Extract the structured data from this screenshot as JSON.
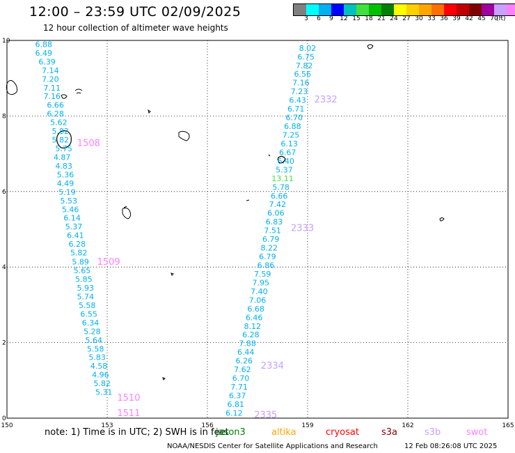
{
  "title": "12:00 – 23:59 UTC 02/09/2025",
  "subtitle": "12 hour collection of altimeter wave heights",
  "colorbar": {
    "colors": [
      "#808080",
      "#00ffff",
      "#00b0f0",
      "#0000ff",
      "#00c0c0",
      "#40e040",
      "#00c000",
      "#008000",
      "#ffff00",
      "#ffd000",
      "#ffa500",
      "#ff7000",
      "#ff0000",
      "#c00000",
      "#800000",
      "#a000a0",
      "#c8a0ff",
      "#ff80ff",
      "#000000"
    ],
    "labels": [
      "3",
      "6",
      "9",
      "12",
      "15",
      "18",
      "21",
      "24",
      "27",
      "30",
      "33",
      "36",
      "39",
      "42",
      "45",
      "70"
    ],
    "unit": "(ft)"
  },
  "axes": {
    "x_ticks": [
      "150",
      "153",
      "156",
      "159",
      "162",
      "165"
    ],
    "y_ticks": [
      "0",
      "2",
      "4",
      "6",
      "8",
      "10"
    ],
    "xlim": [
      150,
      165
    ],
    "ylim": [
      0,
      10
    ]
  },
  "note": "note:  1) Time is in UTC;  2) SWH is in feet",
  "missions": [
    {
      "name": "jason3",
      "color": "#008000"
    },
    {
      "name": "altika",
      "color": "#ffa500"
    },
    {
      "name": "cryosat",
      "color": "#ff0000"
    },
    {
      "name": "s3a",
      "color": "#800000"
    },
    {
      "name": "s3b",
      "color": "#c8a0ff"
    },
    {
      "name": "swot",
      "color": "#ff80ff"
    }
  ],
  "footer": {
    "center": "NOAA/NESDIS Center for Satellite Applications and Research",
    "date": "12 Feb 08:26:08 UTC 2025"
  },
  "colors": {
    "wave_label": "#00b0f0",
    "high_label": "#40e040"
  },
  "tracks": [
    {
      "labels": [
        {
          "text": "1508",
          "lon": 152.1,
          "lat": 7.3,
          "color": "#ff80ff"
        },
        {
          "text": "1509",
          "lon": 152.7,
          "lat": 4.15,
          "color": "#ff80ff"
        },
        {
          "text": "1510",
          "lon": 153.3,
          "lat": 0.55,
          "color": "#ff80ff"
        },
        {
          "text": "1511",
          "lon": 153.3,
          "lat": 0.15,
          "color": "#ff80ff"
        }
      ],
      "points": [
        {
          "lon": 151.1,
          "lat": 9.9,
          "v": "6.88"
        },
        {
          "lon": 151.1,
          "lat": 9.67,
          "v": "6.49"
        },
        {
          "lon": 151.2,
          "lat": 9.44,
          "v": "6.39"
        },
        {
          "lon": 151.3,
          "lat": 9.21,
          "v": "7.14"
        },
        {
          "lon": 151.3,
          "lat": 8.98,
          "v": "7.20"
        },
        {
          "lon": 151.35,
          "lat": 8.75,
          "v": "7.11"
        },
        {
          "lon": 151.35,
          "lat": 8.52,
          "v": "7.16"
        },
        {
          "lon": 151.45,
          "lat": 8.29,
          "v": "6.66"
        },
        {
          "lon": 151.45,
          "lat": 8.06,
          "v": "6.28"
        },
        {
          "lon": 151.55,
          "lat": 7.83,
          "v": "5.62"
        },
        {
          "lon": 151.6,
          "lat": 7.6,
          "v": "5.82"
        },
        {
          "lon": 151.6,
          "lat": 7.37,
          "v": "5.82"
        },
        {
          "lon": 151.7,
          "lat": 7.14,
          "v": "5.75"
        },
        {
          "lon": 151.65,
          "lat": 6.91,
          "v": "4.87"
        },
        {
          "lon": 151.7,
          "lat": 6.68,
          "v": "4.83"
        },
        {
          "lon": 151.75,
          "lat": 6.45,
          "v": "5.36"
        },
        {
          "lon": 151.75,
          "lat": 6.22,
          "v": "4.49"
        },
        {
          "lon": 151.8,
          "lat": 5.99,
          "v": "5.19"
        },
        {
          "lon": 151.85,
          "lat": 5.76,
          "v": "5.53"
        },
        {
          "lon": 151.9,
          "lat": 5.53,
          "v": "5.46"
        },
        {
          "lon": 151.95,
          "lat": 5.3,
          "v": "6.14"
        },
        {
          "lon": 152.0,
          "lat": 5.07,
          "v": "5.37"
        },
        {
          "lon": 152.05,
          "lat": 4.84,
          "v": "6.41"
        },
        {
          "lon": 152.1,
          "lat": 4.61,
          "v": "6.28"
        },
        {
          "lon": 152.15,
          "lat": 4.38,
          "v": "5.82"
        },
        {
          "lon": 152.2,
          "lat": 4.14,
          "v": "5.89"
        },
        {
          "lon": 152.25,
          "lat": 3.91,
          "v": "5.65"
        },
        {
          "lon": 152.3,
          "lat": 3.68,
          "v": "5.85"
        },
        {
          "lon": 152.35,
          "lat": 3.45,
          "v": "5.93"
        },
        {
          "lon": 152.35,
          "lat": 3.22,
          "v": "5.74"
        },
        {
          "lon": 152.4,
          "lat": 2.99,
          "v": "5.58"
        },
        {
          "lon": 152.45,
          "lat": 2.76,
          "v": "6.55"
        },
        {
          "lon": 152.5,
          "lat": 2.53,
          "v": "6.34"
        },
        {
          "lon": 152.55,
          "lat": 2.3,
          "v": "5.28"
        },
        {
          "lon": 152.6,
          "lat": 2.07,
          "v": "5.64"
        },
        {
          "lon": 152.65,
          "lat": 1.84,
          "v": "5.58"
        },
        {
          "lon": 152.7,
          "lat": 1.61,
          "v": "5.83"
        },
        {
          "lon": 152.75,
          "lat": 1.38,
          "v": "4.58"
        },
        {
          "lon": 152.8,
          "lat": 1.15,
          "v": "4.96"
        },
        {
          "lon": 152.85,
          "lat": 0.92,
          "v": "5.82"
        },
        {
          "lon": 152.9,
          "lat": 0.69,
          "v": "5.31"
        }
      ]
    },
    {
      "labels": [
        {
          "text": "2332",
          "lon": 159.2,
          "lat": 8.45,
          "color": "#c8a0ff"
        },
        {
          "text": "2333",
          "lon": 158.5,
          "lat": 5.05,
          "color": "#c8a0ff"
        },
        {
          "text": "2334",
          "lon": 157.6,
          "lat": 1.4,
          "color": "#c8a0ff"
        },
        {
          "text": "2335",
          "lon": 157.4,
          "lat": 0.1,
          "color": "#c8a0ff"
        }
      ],
      "points": [
        {
          "lon": 159.0,
          "lat": 9.8,
          "v": "8.02"
        },
        {
          "lon": 158.95,
          "lat": 9.57,
          "v": "6.75"
        },
        {
          "lon": 158.9,
          "lat": 9.34,
          "v": "7.82"
        },
        {
          "lon": 158.85,
          "lat": 9.11,
          "v": "6.56"
        },
        {
          "lon": 158.8,
          "lat": 8.88,
          "v": "7.16"
        },
        {
          "lon": 158.75,
          "lat": 8.65,
          "v": "7.23"
        },
        {
          "lon": 158.7,
          "lat": 8.42,
          "v": "6.43"
        },
        {
          "lon": 158.65,
          "lat": 8.19,
          "v": "6.71"
        },
        {
          "lon": 158.6,
          "lat": 7.96,
          "v": "6.70"
        },
        {
          "lon": 158.55,
          "lat": 7.73,
          "v": "6.88"
        },
        {
          "lon": 158.5,
          "lat": 7.5,
          "v": "7.25"
        },
        {
          "lon": 158.45,
          "lat": 7.27,
          "v": "6.13"
        },
        {
          "lon": 158.4,
          "lat": 7.04,
          "v": "6.67"
        },
        {
          "lon": 158.35,
          "lat": 6.81,
          "v": "6.40"
        },
        {
          "lon": 158.3,
          "lat": 6.58,
          "v": "5.37"
        },
        {
          "lon": 158.25,
          "lat": 6.35,
          "v": "13.11",
          "high": true
        },
        {
          "lon": 158.2,
          "lat": 6.12,
          "v": "5.78"
        },
        {
          "lon": 158.15,
          "lat": 5.89,
          "v": "6.66"
        },
        {
          "lon": 158.1,
          "lat": 5.66,
          "v": "7.42"
        },
        {
          "lon": 158.05,
          "lat": 5.43,
          "v": "6.06"
        },
        {
          "lon": 158.0,
          "lat": 5.2,
          "v": "6.83"
        },
        {
          "lon": 157.95,
          "lat": 4.97,
          "v": "7.51"
        },
        {
          "lon": 157.9,
          "lat": 4.74,
          "v": "6.79"
        },
        {
          "lon": 157.85,
          "lat": 4.51,
          "v": "8.22"
        },
        {
          "lon": 157.8,
          "lat": 4.28,
          "v": "6.79"
        },
        {
          "lon": 157.75,
          "lat": 4.05,
          "v": "6.86"
        },
        {
          "lon": 157.65,
          "lat": 3.82,
          "v": "7.59"
        },
        {
          "lon": 157.6,
          "lat": 3.59,
          "v": "7.95"
        },
        {
          "lon": 157.55,
          "lat": 3.36,
          "v": "7.40"
        },
        {
          "lon": 157.5,
          "lat": 3.13,
          "v": "7.06"
        },
        {
          "lon": 157.45,
          "lat": 2.9,
          "v": "6.68"
        },
        {
          "lon": 157.4,
          "lat": 2.67,
          "v": "6.46"
        },
        {
          "lon": 157.35,
          "lat": 2.44,
          "v": "8.12"
        },
        {
          "lon": 157.3,
          "lat": 2.21,
          "v": "6.28"
        },
        {
          "lon": 157.2,
          "lat": 1.98,
          "v": "7.88"
        },
        {
          "lon": 157.15,
          "lat": 1.75,
          "v": "6.44"
        },
        {
          "lon": 157.1,
          "lat": 1.52,
          "v": "6.26"
        },
        {
          "lon": 157.05,
          "lat": 1.29,
          "v": "7.62"
        },
        {
          "lon": 157.0,
          "lat": 1.06,
          "v": "6.70"
        },
        {
          "lon": 156.95,
          "lat": 0.83,
          "v": "7.71"
        },
        {
          "lon": 156.9,
          "lat": 0.6,
          "v": "6.37"
        },
        {
          "lon": 156.85,
          "lat": 0.37,
          "v": "6.81"
        },
        {
          "lon": 156.8,
          "lat": 0.14,
          "v": "6.12"
        }
      ]
    }
  ]
}
